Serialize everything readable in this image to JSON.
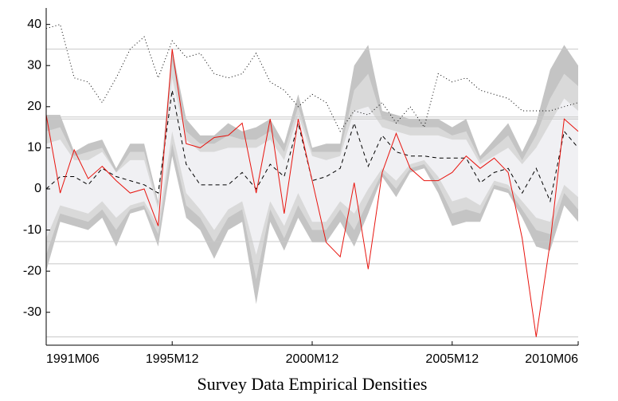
{
  "chart_data": {
    "type": "fan",
    "title": "Survey Data Empirical Densities",
    "categories": [
      "1991M06",
      null,
      null,
      null,
      null,
      null,
      null,
      null,
      null,
      "1995M12",
      null,
      null,
      null,
      null,
      null,
      null,
      null,
      null,
      null,
      "2000M12",
      null,
      null,
      null,
      null,
      null,
      null,
      null,
      null,
      null,
      "2005M12",
      null,
      null,
      null,
      null,
      null,
      null,
      null,
      null,
      "2010M06"
    ],
    "ylim": [
      -38,
      44
    ],
    "yticks": [
      -30,
      -20,
      -10,
      0,
      10,
      20,
      30,
      40
    ],
    "reference_lines": [
      34,
      17.5,
      17,
      -12.8,
      -18.2,
      -36
    ],
    "bands": [
      {
        "color": "#c4c4c4",
        "upper": [
          18,
          18,
          9,
          11,
          12,
          5,
          11,
          11,
          -3,
          34,
          17,
          13,
          13,
          16,
          14,
          15,
          17,
          11,
          23,
          10,
          11,
          11,
          30,
          35,
          19,
          18,
          17,
          17,
          17,
          15,
          17,
          8,
          12,
          16,
          9,
          16,
          29,
          35,
          30
        ],
        "lower": [
          -20,
          -8,
          -9,
          -10,
          -7,
          -14,
          -6,
          -5,
          -14,
          8,
          -7,
          -10,
          -17,
          -10,
          -8,
          -28,
          -8,
          -15,
          -7,
          -13,
          -13,
          -8,
          -14,
          -6,
          3,
          -2,
          4,
          5,
          -1,
          -9,
          -8,
          -8,
          0,
          -1,
          -7,
          -14,
          -15,
          -4,
          -8
        ]
      },
      {
        "color": "#d9d9d9",
        "upper": [
          14,
          15,
          8,
          9,
          10,
          4,
          9,
          9,
          -4,
          31,
          14,
          11,
          11,
          13,
          12,
          12,
          14,
          9,
          20,
          9,
          9,
          9,
          24,
          28,
          17,
          16,
          15,
          15,
          15,
          13,
          14,
          7,
          10,
          13,
          7,
          13,
          22,
          28,
          25
        ],
        "lower": [
          -16,
          -6,
          -7,
          -8,
          -5,
          -10,
          -5,
          -4,
          -11,
          11,
          -4,
          -7,
          -13,
          -7,
          -5,
          -22,
          -5,
          -12,
          -4,
          -10,
          -10,
          -5,
          -10,
          -3,
          4,
          0,
          5,
          6,
          1,
          -6,
          -5,
          -6,
          1,
          0,
          -5,
          -10,
          -11,
          -1,
          -5
        ]
      },
      {
        "color": "#f0f0f3",
        "upper": [
          11,
          12,
          7,
          7,
          9,
          4,
          7,
          7,
          -5,
          27,
          12,
          9,
          9,
          10,
          10,
          10,
          12,
          7,
          18,
          8,
          7,
          8,
          19,
          20,
          15,
          14,
          13,
          13,
          13,
          12,
          12,
          6,
          8,
          10,
          6,
          10,
          16,
          22,
          19
        ],
        "lower": [
          -12,
          -4,
          -5,
          -6,
          -3,
          -7,
          -4,
          -3,
          -9,
          14,
          -1,
          -5,
          -10,
          -5,
          -3,
          -16,
          -3,
          -9,
          -1,
          -8,
          -8,
          -3,
          -6,
          0,
          5,
          2,
          6,
          7,
          3,
          -3,
          -2,
          -4,
          2,
          1,
          -3,
          -7,
          -8,
          1,
          -2
        ]
      }
    ],
    "series": [
      {
        "color": "#000000",
        "dash": "5,4",
        "values": [
          0,
          3,
          3,
          1,
          5,
          3,
          2,
          1,
          -1,
          24,
          6,
          1,
          1,
          1,
          4,
          0,
          6,
          3,
          16,
          2,
          3,
          5,
          16,
          5.5,
          13,
          9,
          8,
          8,
          7.5,
          7.5,
          7.5,
          1.5,
          4,
          5,
          -1,
          5,
          -3,
          14,
          10
        ]
      },
      {
        "color": "#000000",
        "dash": "1,3",
        "values": [
          39,
          40,
          27,
          26,
          21,
          27,
          34,
          37,
          27,
          36,
          32,
          33,
          28,
          27,
          28,
          33,
          26,
          24,
          20,
          23,
          21,
          14,
          19,
          18,
          21,
          16,
          20,
          15,
          28,
          26,
          27,
          24,
          23,
          22,
          19,
          19,
          19,
          20,
          21
        ]
      },
      {
        "color": "#e8140e",
        "dash": "none",
        "values": [
          18,
          -1,
          9.5,
          2.5,
          5.5,
          2,
          -1,
          0,
          -9,
          34,
          11,
          10,
          12.5,
          13,
          16,
          -1,
          17,
          -6,
          17,
          2,
          -13,
          -16.5,
          1.5,
          -19.5,
          4,
          13.5,
          5,
          2,
          2,
          4,
          8,
          5,
          7.5,
          4,
          -12,
          -36,
          -13,
          17,
          14
        ]
      }
    ]
  }
}
